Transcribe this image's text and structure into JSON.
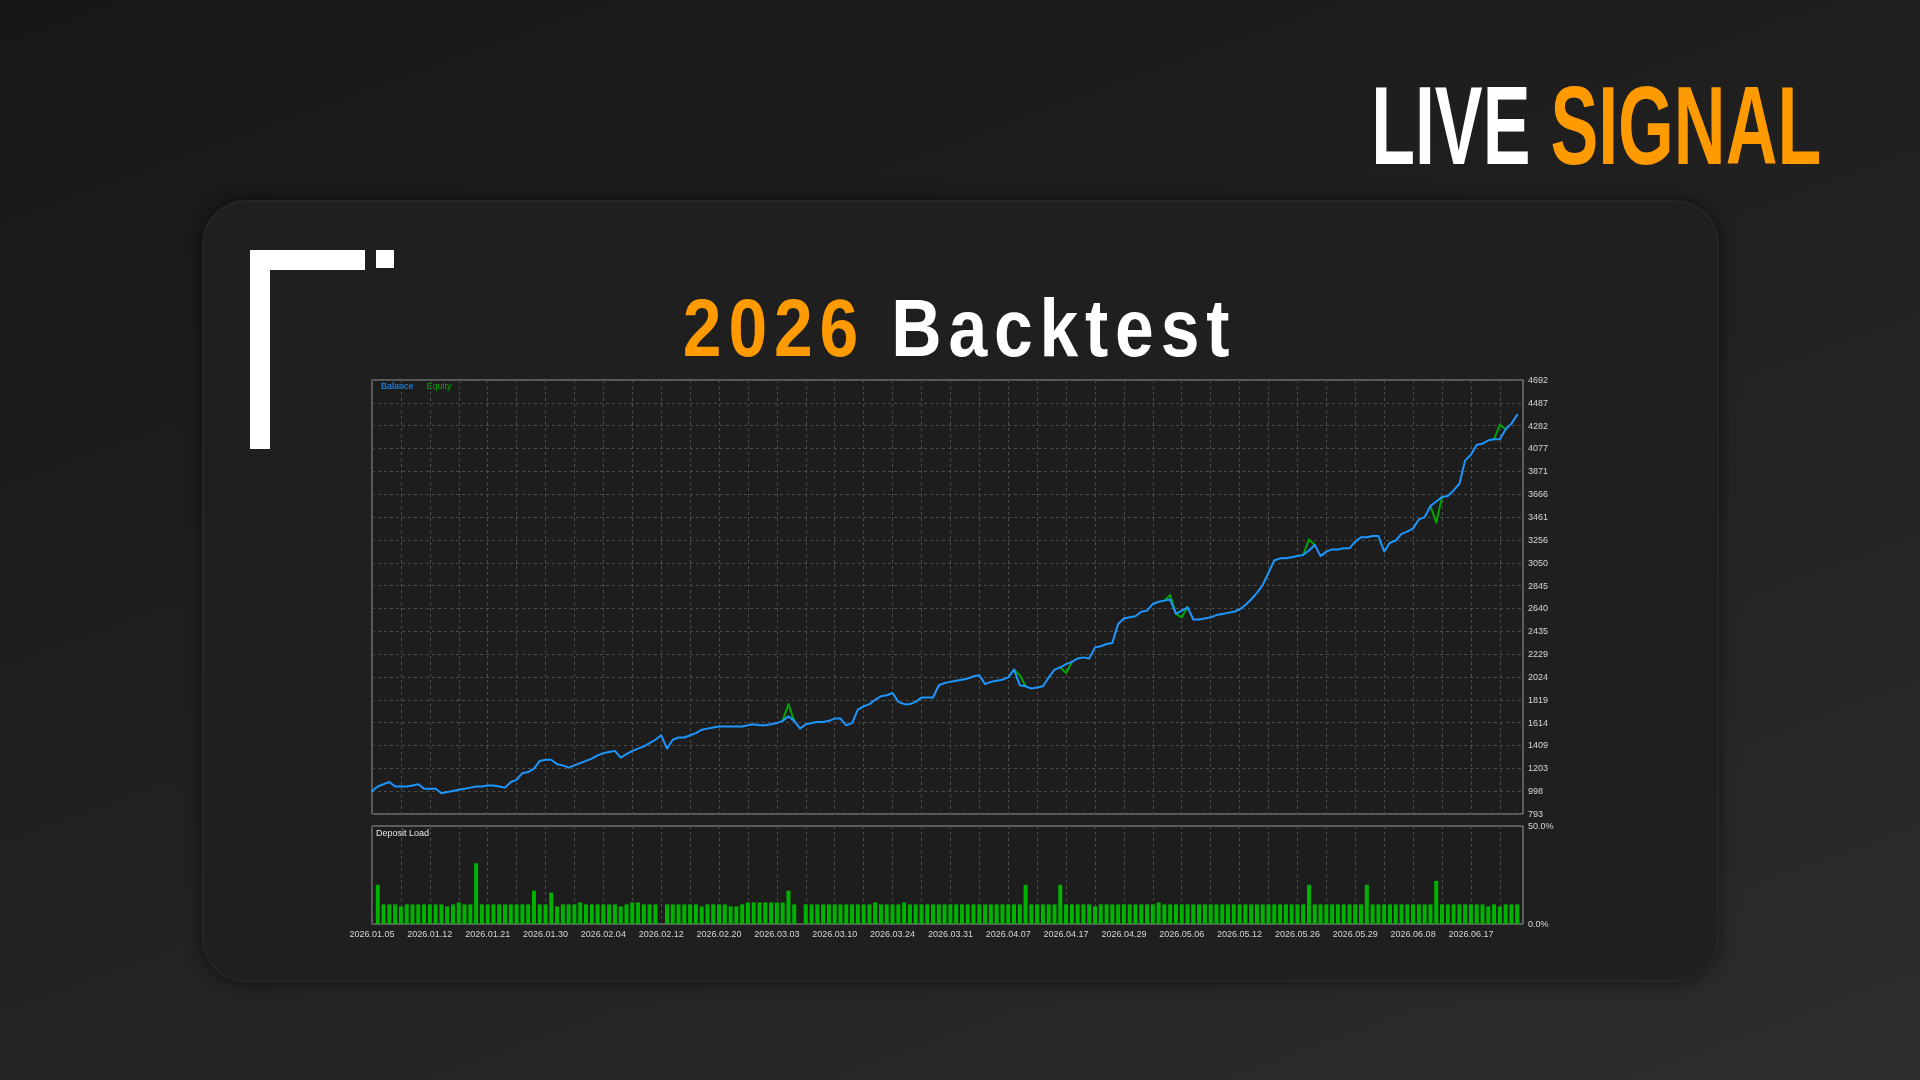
{
  "chart_data": [
    {
      "type": "line",
      "title": "2026 Backtest",
      "subtitle": "LIVE SIGNAL",
      "categories": [
        "2026.01.05",
        null,
        null,
        null,
        null,
        null,
        null,
        null,
        null,
        null,
        "2026.01.12",
        null,
        null,
        null,
        null,
        null,
        null,
        null,
        null,
        null,
        "2026.01.21",
        null,
        null,
        null,
        null,
        null,
        null,
        null,
        null,
        null,
        "2026.01.30",
        null,
        null,
        null,
        null,
        null,
        null,
        null,
        null,
        null,
        "2026.02.04",
        null,
        null,
        null,
        null,
        null,
        null,
        null,
        null,
        null,
        "2026.02.12",
        null,
        null,
        null,
        null,
        null,
        null,
        null,
        null,
        null,
        "2026.02.20",
        null,
        null,
        null,
        null,
        null,
        null,
        null,
        null,
        null,
        "2026.03.03",
        null,
        null,
        null,
        null,
        null,
        null,
        null,
        null,
        null,
        "2026.03.10",
        null,
        null,
        null,
        null,
        null,
        null,
        null,
        null,
        null,
        "2026.03.24",
        null,
        null,
        null,
        null,
        null,
        null,
        null,
        null,
        null,
        "2026.03.31",
        null,
        null,
        null,
        null,
        null,
        null,
        null,
        null,
        null,
        "2026.04.07",
        null,
        null,
        null,
        null,
        null,
        null,
        null,
        null,
        null,
        "2026.04.17",
        null,
        null,
        null,
        null,
        null,
        null,
        null,
        null,
        null,
        "2026.04.29",
        null,
        null,
        null,
        null,
        null,
        null,
        null,
        null,
        null,
        "2026.05.06",
        null,
        null,
        null,
        null,
        null,
        null,
        null,
        null,
        null,
        "2026.05.12",
        null,
        null,
        null,
        null,
        null,
        null,
        null,
        null,
        null,
        "2026.05.26",
        null,
        null,
        null,
        null,
        null,
        null,
        null,
        null,
        null,
        "2026.05.29",
        null,
        null,
        null,
        null,
        null,
        null,
        null,
        null,
        null,
        "2026.06.08",
        null,
        null,
        null,
        null,
        null,
        null,
        null,
        null,
        null,
        "2026.06.17",
        null,
        null,
        null,
        null,
        null,
        null,
        null,
        null,
        null
      ],
      "ylim": [
        793,
        4692
      ],
      "yticks": [
        793,
        998,
        1203,
        1409,
        1614,
        1819,
        2024,
        2229,
        2435,
        2640,
        2845,
        3050,
        3256,
        3461,
        3666,
        3871,
        4077,
        4282,
        4487,
        4692
      ],
      "grid": true,
      "legend": "top left",
      "marker": "none",
      "line_style": "solid",
      "tick_labels": "y",
      "series": [
        {
          "name": "Balance",
          "color": "#1e96ff",
          "values": [
            1000,
            1040,
            1060,
            1080,
            1040,
            1040,
            1040,
            1050,
            1060,
            1020,
            1020,
            1020,
            980,
            990,
            1000,
            1010,
            1020,
            1030,
            1040,
            1040,
            1050,
            1050,
            1040,
            1030,
            1080,
            1100,
            1160,
            1170,
            1200,
            1270,
            1280,
            1280,
            1240,
            1230,
            1210,
            1230,
            1250,
            1270,
            1290,
            1320,
            1340,
            1350,
            1360,
            1300,
            1330,
            1360,
            1380,
            1400,
            1430,
            1460,
            1500,
            1380,
            1460,
            1480,
            1480,
            1500,
            1520,
            1550,
            1560,
            1570,
            1580,
            1580,
            1580,
            1580,
            1580,
            1590,
            1600,
            1590,
            1590,
            1600,
            1610,
            1630,
            1670,
            1630,
            1560,
            1600,
            1610,
            1620,
            1620,
            1630,
            1650,
            1650,
            1590,
            1610,
            1730,
            1760,
            1780,
            1820,
            1850,
            1860,
            1880,
            1800,
            1780,
            1780,
            1800,
            1840,
            1840,
            1840,
            1950,
            1970,
            1980,
            1990,
            2000,
            2010,
            2030,
            2040,
            1960,
            1980,
            1990,
            2000,
            2020,
            2090,
            1950,
            1940,
            1920,
            1930,
            1940,
            2020,
            2090,
            2110,
            2140,
            2160,
            2190,
            2200,
            2190,
            2290,
            2300,
            2320,
            2330,
            2500,
            2550,
            2560,
            2570,
            2610,
            2620,
            2680,
            2700,
            2710,
            2720,
            2590,
            2620,
            2650,
            2540,
            2540,
            2550,
            2560,
            2580,
            2590,
            2600,
            2610,
            2630,
            2670,
            2720,
            2780,
            2850,
            2960,
            3070,
            3090,
            3090,
            3100,
            3110,
            3120,
            3160,
            3210,
            3110,
            3150,
            3170,
            3170,
            3180,
            3180,
            3240,
            3280,
            3280,
            3290,
            3290,
            3150,
            3230,
            3250,
            3310,
            3330,
            3360,
            3440,
            3460,
            3560,
            3600,
            3640,
            3650,
            3700,
            3760,
            3970,
            4020,
            4110,
            4120,
            4150,
            4160,
            4160,
            4250,
            4300,
            4380,
            null
          ]
        },
        {
          "name": "Equity",
          "color": "#00a600",
          "values": [
            null,
            null,
            null,
            null,
            null,
            null,
            null,
            null,
            null,
            null,
            null,
            null,
            null,
            null,
            null,
            null,
            null,
            null,
            null,
            null,
            null,
            null,
            null,
            null,
            null,
            null,
            null,
            null,
            null,
            null,
            null,
            null,
            null,
            null,
            null,
            null,
            null,
            null,
            null,
            null,
            null,
            null,
            null,
            null,
            null,
            null,
            null,
            null,
            null,
            null,
            null,
            null,
            null,
            null,
            null,
            null,
            null,
            null,
            null,
            null,
            null,
            null,
            null,
            null,
            null,
            null,
            null,
            null,
            null,
            null,
            null,
            1630,
            1780,
            1630,
            null,
            null,
            null,
            null,
            null,
            null,
            null,
            null,
            null,
            null,
            null,
            null,
            null,
            null,
            null,
            null,
            null,
            null,
            null,
            null,
            null,
            null,
            null,
            null,
            null,
            null,
            null,
            null,
            null,
            null,
            null,
            null,
            null,
            null,
            null,
            null,
            null,
            2090,
            2040,
            1940,
            null,
            null,
            null,
            null,
            null,
            2110,
            2060,
            2160,
            null,
            null,
            null,
            null,
            null,
            null,
            null,
            null,
            null,
            null,
            null,
            null,
            null,
            null,
            null,
            2710,
            2760,
            2590,
            2560,
            2650,
            null,
            null,
            null,
            null,
            null,
            null,
            null,
            null,
            null,
            null,
            null,
            null,
            null,
            null,
            null,
            null,
            null,
            null,
            null,
            3120,
            3260,
            3210,
            null,
            null,
            null,
            null,
            null,
            null,
            null,
            null,
            null,
            null,
            null,
            null,
            null,
            null,
            null,
            null,
            null,
            null,
            null,
            3560,
            3410,
            3640,
            null,
            null,
            null,
            null,
            null,
            null,
            null,
            null,
            4160,
            4290,
            4250,
            null,
            null,
            null
          ]
        }
      ]
    },
    {
      "type": "bar",
      "title": "Deposit Load",
      "color": "#00b300",
      "categories": [
        "2026.01.05",
        null,
        null,
        null,
        null,
        null,
        null,
        null,
        null,
        null,
        "2026.01.12",
        null,
        null,
        null,
        null,
        null,
        null,
        null,
        null,
        null,
        "2026.01.21",
        null,
        null,
        null,
        null,
        null,
        null,
        null,
        null,
        null,
        "2026.01.30",
        null,
        null,
        null,
        null,
        null,
        null,
        null,
        null,
        null,
        "2026.02.04",
        null,
        null,
        null,
        null,
        null,
        null,
        null,
        null,
        null,
        "2026.02.12",
        null,
        null,
        null,
        null,
        null,
        null,
        null,
        null,
        null,
        "2026.02.20",
        null,
        null,
        null,
        null,
        null,
        null,
        null,
        null,
        null,
        "2026.03.03",
        null,
        null,
        null,
        null,
        null,
        null,
        null,
        null,
        null,
        "2026.03.10",
        null,
        null,
        null,
        null,
        null,
        null,
        null,
        null,
        null,
        "2026.03.24",
        null,
        null,
        null,
        null,
        null,
        null,
        null,
        null,
        null,
        "2026.03.31",
        null,
        null,
        null,
        null,
        null,
        null,
        null,
        null,
        null,
        "2026.04.07",
        null,
        null,
        null,
        null,
        null,
        null,
        null,
        null,
        null,
        "2026.04.17",
        null,
        null,
        null,
        null,
        null,
        null,
        null,
        null,
        null,
        "2026.04.29",
        null,
        null,
        null,
        null,
        null,
        null,
        null,
        null,
        null,
        "2026.05.06",
        null,
        null,
        null,
        null,
        null,
        null,
        null,
        null,
        null,
        "2026.05.12",
        null,
        null,
        null,
        null,
        null,
        null,
        null,
        null,
        null,
        "2026.05.26",
        null,
        null,
        null,
        null,
        null,
        null,
        null,
        null,
        null,
        "2026.05.29",
        null,
        null,
        null,
        null,
        null,
        null,
        null,
        null,
        null,
        "2026.06.08",
        null,
        null,
        null,
        null,
        null,
        null,
        null,
        null,
        null,
        "2026.06.17",
        null,
        null,
        null,
        null,
        null,
        null,
        null,
        null,
        null
      ],
      "ylim": [
        0,
        50
      ],
      "yticks": [
        {
          "value": 0,
          "label": "0.0%"
        },
        {
          "value": 50,
          "label": "50.0%"
        }
      ],
      "grid": "x",
      "values": [
        null,
        20,
        10,
        10,
        10,
        9,
        10,
        10,
        10,
        10,
        10,
        10,
        10,
        9,
        10,
        11,
        10,
        10,
        31,
        10,
        10,
        10,
        10,
        10,
        10,
        10,
        10,
        10,
        17,
        10,
        10,
        16,
        9,
        10,
        10,
        10,
        11,
        10,
        10,
        10,
        10,
        10,
        10,
        9,
        10,
        11,
        11,
        10,
        10,
        10,
        null,
        10,
        10,
        10,
        10,
        10,
        10,
        9,
        10,
        10,
        10,
        10,
        9,
        9,
        10,
        11,
        11,
        11,
        11,
        11,
        11,
        11,
        17,
        10,
        null,
        10,
        10,
        10,
        10,
        10,
        10,
        10,
        10,
        10,
        10,
        10,
        10,
        11,
        10,
        10,
        10,
        10,
        11,
        10,
        10,
        10,
        10,
        10,
        10,
        10,
        10,
        10,
        10,
        10,
        10,
        10,
        10,
        10,
        10,
        10,
        10,
        10,
        10,
        20,
        10,
        10,
        10,
        10,
        10,
        20,
        10,
        10,
        10,
        10,
        10,
        9,
        10,
        10,
        10,
        10,
        10,
        10,
        10,
        10,
        10,
        10,
        11,
        10,
        10,
        10,
        10,
        10,
        10,
        10,
        10,
        10,
        10,
        10,
        10,
        10,
        10,
        10,
        10,
        10,
        10,
        10,
        10,
        10,
        10,
        10,
        10,
        10,
        20,
        10,
        10,
        10,
        10,
        10,
        10,
        10,
        10,
        10,
        20,
        10,
        10,
        10,
        10,
        10,
        10,
        10,
        10,
        10,
        10,
        10,
        22,
        10,
        10,
        10,
        10,
        10,
        10,
        10,
        10,
        9,
        10,
        9,
        10,
        10,
        10,
        null
      ]
    }
  ]
}
